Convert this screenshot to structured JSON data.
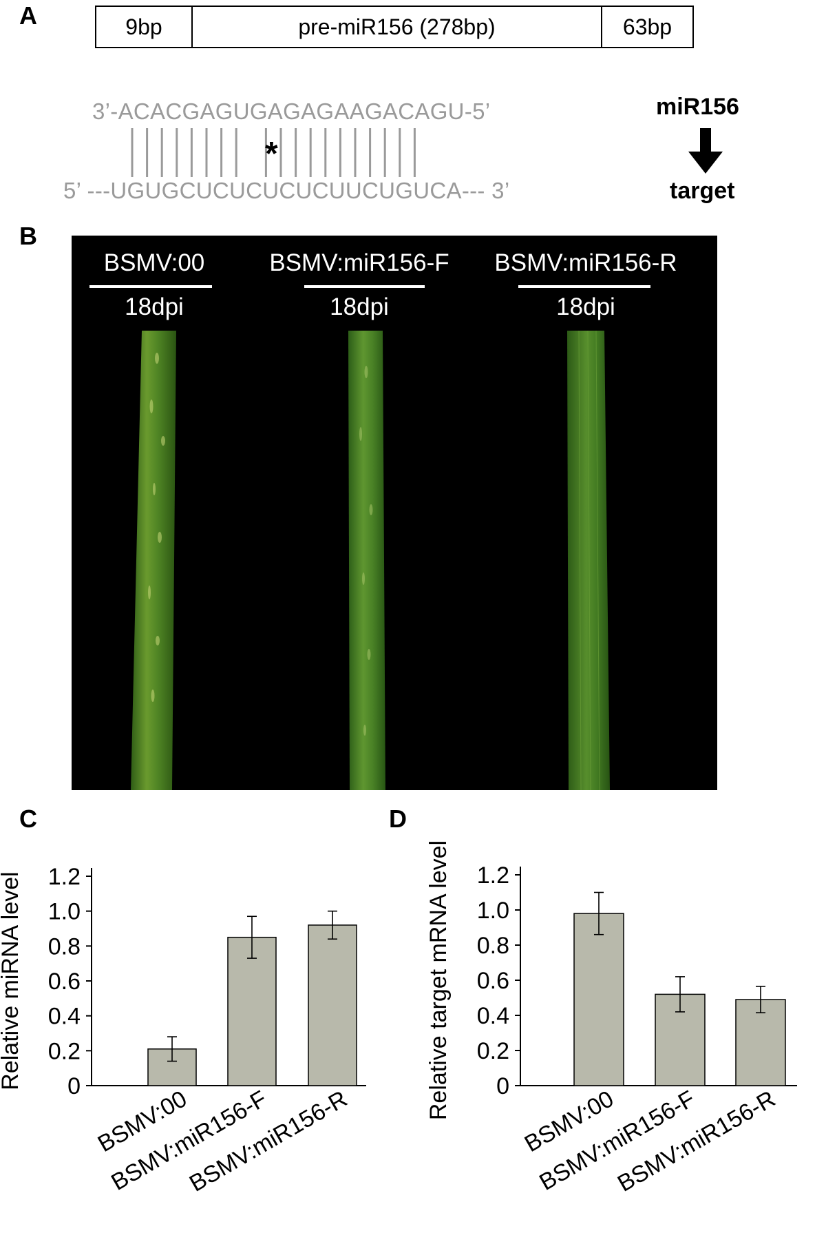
{
  "panel_labels": {
    "a": "A",
    "b": "B",
    "c": "C",
    "d": "D"
  },
  "gene_structure": [
    "9bp",
    "pre-miR156 (278bp)",
    "63bp"
  ],
  "alignment": {
    "mirna_seq": "3’-ACACGAGUGAGAGAAGACAGU-5’",
    "target_seq": "5’ ---UGUGCUCUCUCUCUUCUGUCA--- 3’",
    "mismatch_mark": "*",
    "label_top": "miR156",
    "label_bottom": "target"
  },
  "photo": {
    "columns": [
      {
        "title": "BSMV:00",
        "time": "18dpi"
      },
      {
        "title": "BSMV:miR156-F",
        "time": "18dpi"
      },
      {
        "title": "BSMV:miR156-R",
        "time": "18dpi"
      }
    ]
  },
  "chart_data": [
    {
      "type": "bar",
      "categories": [
        "BSMV:00",
        "BSMV:miR156-F",
        "BSMV:miR156-R"
      ],
      "values": [
        0.21,
        0.85,
        0.92
      ],
      "errors": [
        0.07,
        0.12,
        0.08
      ],
      "ylabel": "Relative miRNA level",
      "xlabel": "",
      "ylim": [
        0,
        1.2
      ],
      "yticks": [
        "0",
        "0.2",
        "0.4",
        "0.6",
        "0.8",
        "1.0",
        "1.2"
      ],
      "bar_color": "#b8b9ab"
    },
    {
      "type": "bar",
      "categories": [
        "BSMV:00",
        "BSMV:miR156-F",
        "BSMV:miR156-R"
      ],
      "values": [
        0.98,
        0.52,
        0.49
      ],
      "errors": [
        0.12,
        0.1,
        0.075
      ],
      "ylabel": "Relative target mRNA level",
      "xlabel": "",
      "ylim": [
        0,
        1.2
      ],
      "yticks": [
        "0",
        "0.2",
        "0.4",
        "0.6",
        "0.8",
        "1.0",
        "1.2"
      ],
      "bar_color": "#b8b9ab"
    }
  ]
}
